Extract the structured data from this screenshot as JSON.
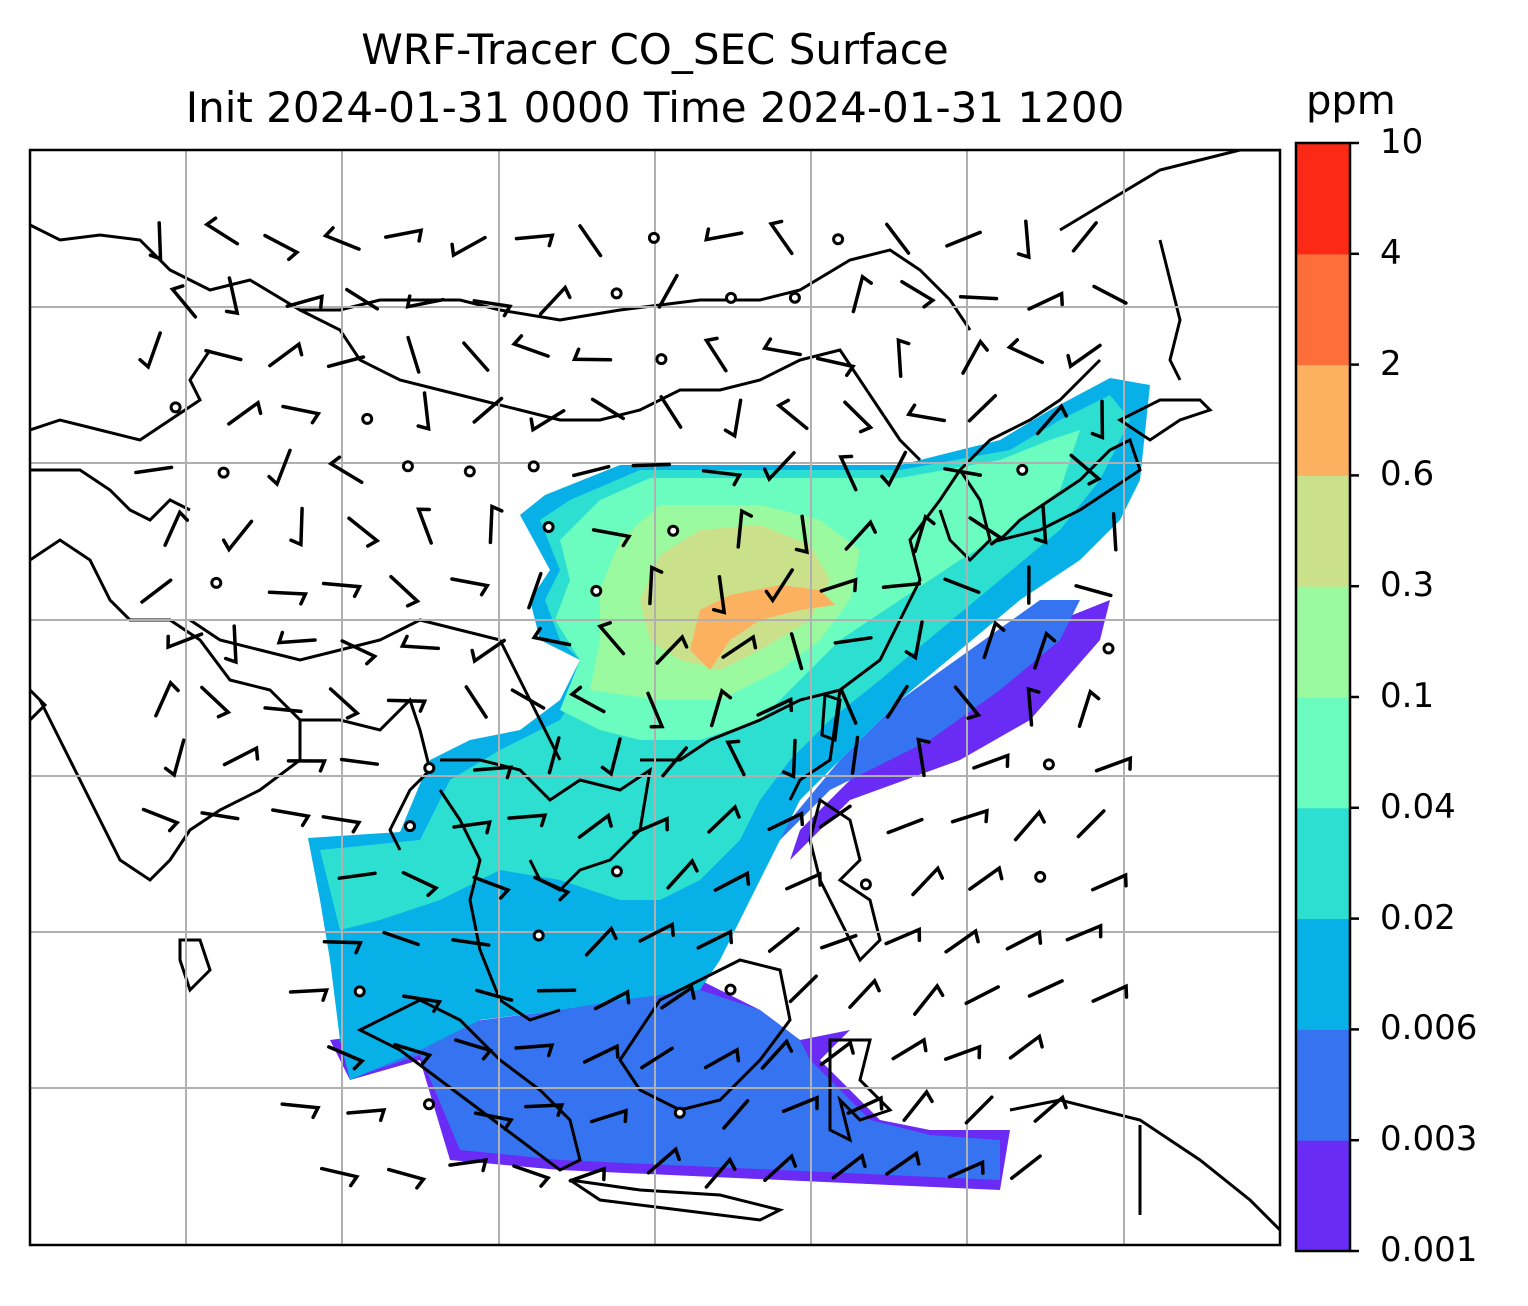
{
  "title": {
    "line1": "WRF-Tracer CO_SEC Surface",
    "line2": "Init 2024-01-31 0000 Time 2024-01-31 1200"
  },
  "colorbar": {
    "unit": "ppm",
    "ticks": [
      "0.001",
      "0.003",
      "0.006",
      "0.02",
      "0.04",
      "0.1",
      "0.3",
      "0.6",
      "2",
      "4",
      "10"
    ],
    "colors": [
      "#6a2cf5",
      "#3573f0",
      "#08b0e8",
      "#2ddfd0",
      "#6bfdbf",
      "#9bf9a0",
      "#cbe08a",
      "#fcb160",
      "#fd6e3a",
      "#fb2916"
    ]
  },
  "map": {
    "region": "East and Southeast Asia",
    "gridlines": true,
    "coastlines": true,
    "wind_barbs": true,
    "calm_circles": true
  }
}
